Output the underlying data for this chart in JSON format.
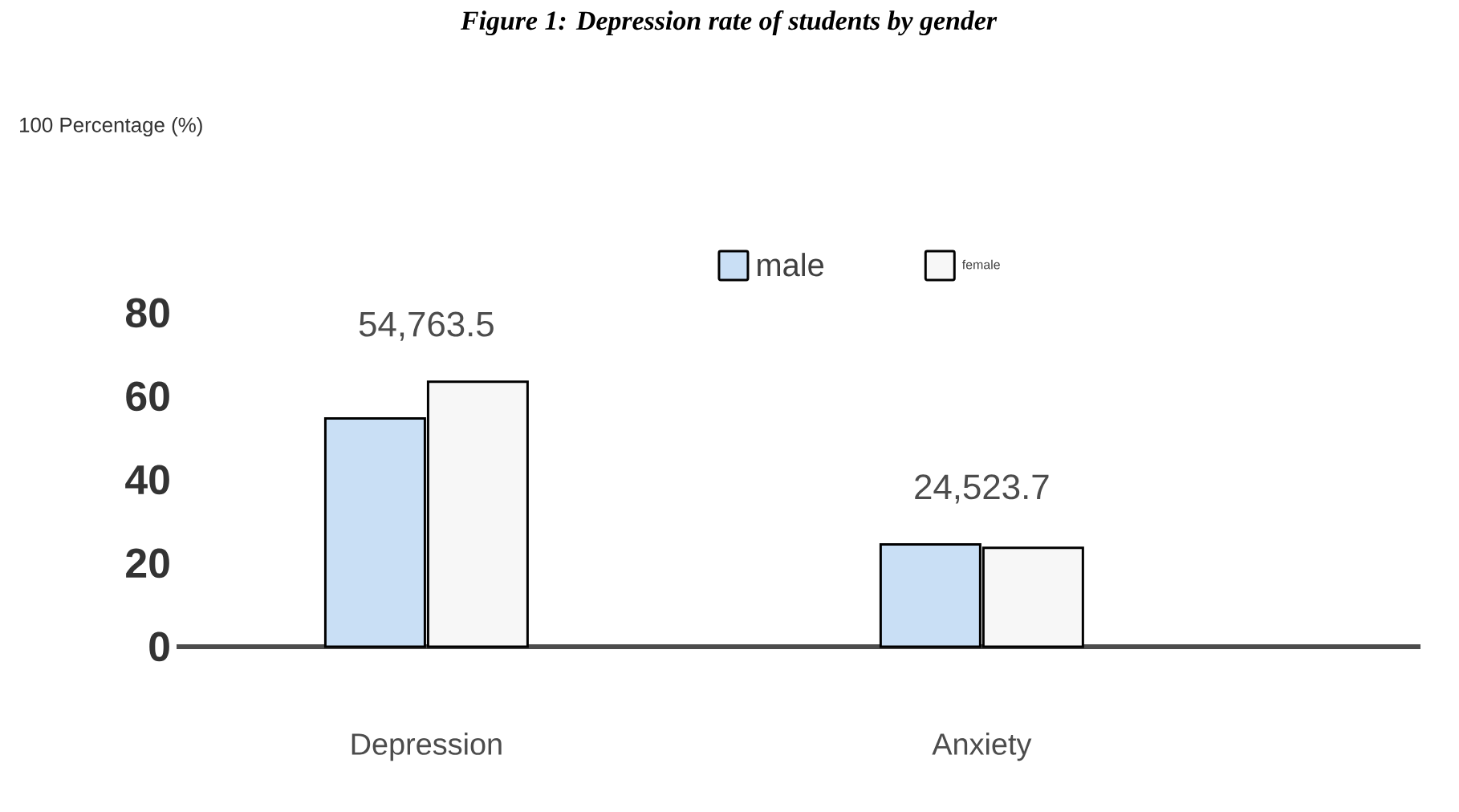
{
  "chart_data": {
    "type": "bar",
    "title": "Figure 1: Depression rate of students by gender",
    "categories": [
      "Depression",
      "Anxiety"
    ],
    "series": [
      {
        "name": "male",
        "color": "#c9dff5",
        "values": [
          54.7,
          24.5
        ]
      },
      {
        "name": "female",
        "color": "#f7f7f7",
        "values": [
          63.5,
          23.7
        ]
      }
    ],
    "ylim": [
      0,
      80
    ],
    "yticks": [
      0,
      20,
      40,
      60,
      80
    ],
    "grid": false,
    "legend": "top",
    "annotations": [
      "54,763.5",
      "24,523.7",
      "100 Percentage (%)"
    ]
  }
}
